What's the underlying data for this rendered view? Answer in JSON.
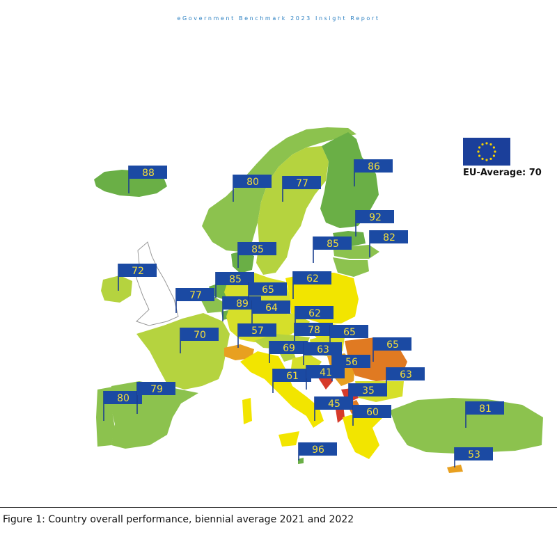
{
  "header": {
    "text": "eGovernment Benchmark 2023 Insight Report"
  },
  "legend": {
    "eu_average_label": "EU-Average: 70",
    "flag_color": "#1b3f9a",
    "star_color": "#f5d100"
  },
  "caption": "Figure 1: Country overall performance, biennial average 2021 and 2022",
  "colors": {
    "dark_green": "#6aaf46",
    "green": "#8cc24e",
    "light_green": "#b5d33f",
    "yellow_green": "#d6df2a",
    "yellow": "#f2e500",
    "orange": "#e8a020",
    "dark_orange": "#e07a22",
    "red": "#d63a2a",
    "no_data": "#ffffff"
  },
  "countries": [
    {
      "name": "Iceland",
      "score": "88"
    },
    {
      "name": "Norway",
      "score": "80"
    },
    {
      "name": "Sweden",
      "score": "77"
    },
    {
      "name": "Finland",
      "score": "86"
    },
    {
      "name": "Estonia",
      "score": "92"
    },
    {
      "name": "Latvia",
      "score": "82"
    },
    {
      "name": "Lithuania",
      "score": "85"
    },
    {
      "name": "Denmark",
      "score": "85"
    },
    {
      "name": "Ireland",
      "score": "72"
    },
    {
      "name": "Netherlands",
      "score": "85"
    },
    {
      "name": "Belgium",
      "score": "77"
    },
    {
      "name": "Luxembourg",
      "score": "89"
    },
    {
      "name": "Germany",
      "score": "65"
    },
    {
      "name": "Poland",
      "score": "62"
    },
    {
      "name": "Czechia",
      "score": "64"
    },
    {
      "name": "Slovakia",
      "score": "62"
    },
    {
      "name": "Austria",
      "score": "78"
    },
    {
      "name": "Hungary",
      "score": "65"
    },
    {
      "name": "France",
      "score": "70"
    },
    {
      "name": "Switzerland",
      "score": "57"
    },
    {
      "name": "Slovenia",
      "score": "69"
    },
    {
      "name": "Croatia",
      "score": "63"
    },
    {
      "name": "Serbia",
      "score": "56"
    },
    {
      "name": "Romania",
      "score": "65"
    },
    {
      "name": "Bulgaria",
      "score": "63"
    },
    {
      "name": "Italy",
      "score": "61"
    },
    {
      "name": "Bosnia and Herzegovina",
      "score": "41"
    },
    {
      "name": "Montenegro",
      "score": "35"
    },
    {
      "name": "Albania",
      "score": "45"
    },
    {
      "name": "North Macedonia",
      "score": "60"
    },
    {
      "name": "Portugal",
      "score": "80"
    },
    {
      "name": "Spain",
      "score": "79"
    },
    {
      "name": "Malta",
      "score": "96"
    },
    {
      "name": "Turkey",
      "score": "81"
    },
    {
      "name": "Cyprus",
      "score": "53"
    }
  ]
}
